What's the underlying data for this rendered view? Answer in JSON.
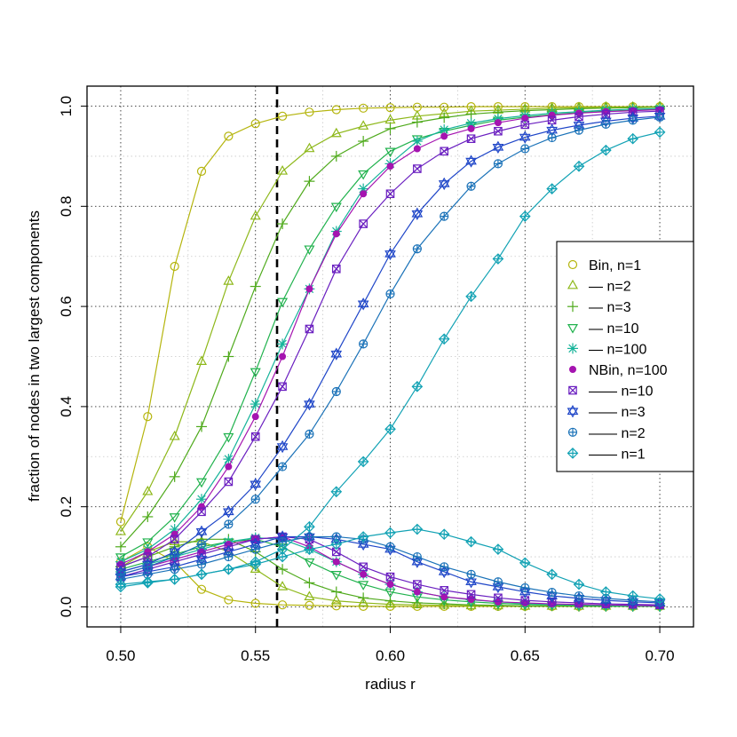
{
  "chart_data": {
    "type": "line",
    "xlabel": "radius r",
    "ylabel": "fraction of nodes in two largest components",
    "xlim": [
      0.4875,
      0.7125
    ],
    "ylim": [
      -0.04,
      1.04
    ],
    "x_ticks": [
      "0.50",
      "0.55",
      "0.60",
      "0.65",
      "0.70"
    ],
    "y_ticks": [
      "0.0",
      "0.2",
      "0.4",
      "0.6",
      "0.8",
      "1.0"
    ],
    "grid": true,
    "vline": 0.558,
    "legend_position": "right",
    "x": [
      0.5,
      0.51,
      0.52,
      0.53,
      0.54,
      0.55,
      0.56,
      0.57,
      0.58,
      0.59,
      0.6,
      0.61,
      0.62,
      0.63,
      0.64,
      0.65,
      0.66,
      0.67,
      0.68,
      0.69,
      0.7
    ],
    "series": [
      {
        "name": "Bin, n=1",
        "color": "#b5b50e",
        "marker": "circle",
        "largest": [
          0.17,
          0.38,
          0.68,
          0.87,
          0.94,
          0.965,
          0.98,
          0.988,
          0.993,
          0.996,
          0.997,
          0.998,
          0.998,
          0.999,
          0.999,
          0.999,
          0.999,
          0.999,
          0.999,
          0.999,
          0.999
        ],
        "second": [
          0.09,
          0.12,
          0.09,
          0.035,
          0.014,
          0.007,
          0.004,
          0.003,
          0.002,
          0.001,
          0.001,
          0.001,
          0.001,
          0.001,
          0.001,
          0.001,
          0.001,
          0.001,
          0.001,
          0.001,
          0.001
        ]
      },
      {
        "name": "n=2",
        "legend_label": "—  n=2",
        "color": "#8eb81a",
        "marker": "triangle-up",
        "largest": [
          0.15,
          0.23,
          0.34,
          0.49,
          0.65,
          0.78,
          0.87,
          0.915,
          0.945,
          0.96,
          0.972,
          0.98,
          0.985,
          0.99,
          0.992,
          0.994,
          0.996,
          0.997,
          0.998,
          0.998,
          0.999
        ],
        "second": [
          0.08,
          0.11,
          0.13,
          0.13,
          0.11,
          0.075,
          0.04,
          0.02,
          0.012,
          0.008,
          0.005,
          0.004,
          0.003,
          0.002,
          0.002,
          0.001,
          0.001,
          0.001,
          0.001,
          0.001,
          0.001
        ]
      },
      {
        "name": "n=3",
        "legend_label": "—  n=3",
        "color": "#4faa1c",
        "marker": "plus",
        "largest": [
          0.12,
          0.18,
          0.26,
          0.36,
          0.5,
          0.64,
          0.765,
          0.85,
          0.9,
          0.93,
          0.955,
          0.968,
          0.977,
          0.984,
          0.988,
          0.991,
          0.993,
          0.995,
          0.996,
          0.997,
          0.998
        ],
        "second": [
          0.08,
          0.1,
          0.12,
          0.135,
          0.135,
          0.11,
          0.075,
          0.048,
          0.03,
          0.018,
          0.012,
          0.008,
          0.006,
          0.004,
          0.003,
          0.002,
          0.002,
          0.001,
          0.001,
          0.001,
          0.001
        ]
      },
      {
        "name": "n=10",
        "legend_label": "—  n=10",
        "color": "#20b24d",
        "marker": "triangle-down",
        "largest": [
          0.1,
          0.13,
          0.18,
          0.25,
          0.34,
          0.47,
          0.61,
          0.715,
          0.8,
          0.865,
          0.91,
          0.935,
          0.95,
          0.962,
          0.972,
          0.978,
          0.983,
          0.987,
          0.99,
          0.992,
          0.994
        ],
        "second": [
          0.075,
          0.09,
          0.105,
          0.12,
          0.13,
          0.135,
          0.12,
          0.09,
          0.065,
          0.045,
          0.03,
          0.02,
          0.014,
          0.01,
          0.007,
          0.005,
          0.004,
          0.003,
          0.002,
          0.002,
          0.001
        ]
      },
      {
        "name": "n=100",
        "legend_label": "—  n=100",
        "color": "#17b39a",
        "marker": "star",
        "largest": [
          0.09,
          0.115,
          0.155,
          0.215,
          0.295,
          0.405,
          0.525,
          0.635,
          0.75,
          0.835,
          0.885,
          0.93,
          0.953,
          0.966,
          0.975,
          0.981,
          0.986,
          0.989,
          0.992,
          0.994,
          0.995
        ],
        "second": [
          0.07,
          0.085,
          0.1,
          0.115,
          0.13,
          0.138,
          0.135,
          0.115,
          0.09,
          0.065,
          0.045,
          0.03,
          0.02,
          0.014,
          0.01,
          0.007,
          0.005,
          0.004,
          0.003,
          0.002,
          0.002
        ]
      },
      {
        "name": "NBin, n=100",
        "color": "#a514b0",
        "marker": "dot",
        "largest": [
          0.085,
          0.11,
          0.145,
          0.2,
          0.28,
          0.38,
          0.5,
          0.635,
          0.745,
          0.825,
          0.88,
          0.915,
          0.94,
          0.955,
          0.967,
          0.976,
          0.982,
          0.986,
          0.989,
          0.991,
          0.993
        ],
        "second": [
          0.065,
          0.08,
          0.095,
          0.11,
          0.125,
          0.135,
          0.14,
          0.12,
          0.09,
          0.065,
          0.045,
          0.03,
          0.02,
          0.015,
          0.01,
          0.008,
          0.006,
          0.005,
          0.004,
          0.003,
          0.002
        ]
      },
      {
        "name": "n=10",
        "legend_label": "—— n=10",
        "color": "#6a1fc0",
        "marker": "square-x",
        "largest": [
          0.08,
          0.1,
          0.135,
          0.19,
          0.25,
          0.34,
          0.44,
          0.555,
          0.675,
          0.765,
          0.825,
          0.875,
          0.91,
          0.935,
          0.95,
          0.963,
          0.972,
          0.979,
          0.984,
          0.988,
          0.99
        ],
        "second": [
          0.06,
          0.075,
          0.09,
          0.105,
          0.12,
          0.135,
          0.14,
          0.135,
          0.11,
          0.08,
          0.06,
          0.045,
          0.033,
          0.025,
          0.018,
          0.013,
          0.01,
          0.008,
          0.006,
          0.005,
          0.004
        ]
      },
      {
        "name": "n=3",
        "legend_label": "—— n=3",
        "color": "#1f46c8",
        "marker": "hexagram",
        "largest": [
          0.07,
          0.085,
          0.11,
          0.15,
          0.19,
          0.245,
          0.32,
          0.405,
          0.505,
          0.605,
          0.705,
          0.785,
          0.845,
          0.89,
          0.918,
          0.938,
          0.952,
          0.962,
          0.97,
          0.976,
          0.98
        ],
        "second": [
          0.06,
          0.07,
          0.08,
          0.095,
          0.11,
          0.125,
          0.14,
          0.14,
          0.135,
          0.125,
          0.115,
          0.09,
          0.07,
          0.05,
          0.04,
          0.03,
          0.022,
          0.017,
          0.013,
          0.01,
          0.008
        ]
      },
      {
        "name": "n=2",
        "legend_label": "—— n=2",
        "color": "#1a72b8",
        "marker": "circle-plus",
        "largest": [
          0.065,
          0.08,
          0.1,
          0.125,
          0.165,
          0.215,
          0.28,
          0.345,
          0.43,
          0.525,
          0.625,
          0.715,
          0.78,
          0.84,
          0.885,
          0.915,
          0.937,
          0.952,
          0.964,
          0.972,
          0.978
        ],
        "second": [
          0.055,
          0.065,
          0.075,
          0.085,
          0.1,
          0.115,
          0.13,
          0.14,
          0.14,
          0.135,
          0.12,
          0.1,
          0.08,
          0.065,
          0.05,
          0.038,
          0.029,
          0.022,
          0.017,
          0.013,
          0.01
        ]
      },
      {
        "name": "n=1",
        "legend_label": "—— n=1",
        "color": "#12a2b4",
        "marker": "diamond-plus",
        "largest": [
          0.045,
          0.05,
          0.055,
          0.065,
          0.075,
          0.09,
          0.115,
          0.16,
          0.23,
          0.29,
          0.355,
          0.44,
          0.535,
          0.62,
          0.695,
          0.78,
          0.835,
          0.88,
          0.912,
          0.935,
          0.948
        ],
        "second": [
          0.04,
          0.048,
          0.055,
          0.065,
          0.075,
          0.085,
          0.1,
          0.115,
          0.125,
          0.14,
          0.148,
          0.155,
          0.145,
          0.13,
          0.115,
          0.088,
          0.065,
          0.045,
          0.03,
          0.022,
          0.016
        ]
      }
    ]
  }
}
